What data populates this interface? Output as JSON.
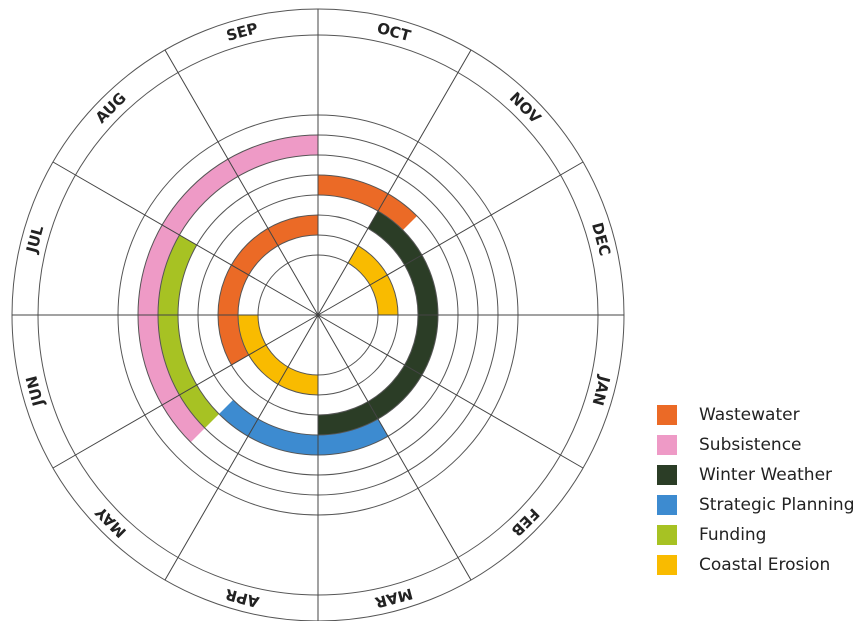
{
  "chart_data": {
    "type": "radial-calendar",
    "months": [
      "OCT",
      "NOV",
      "DEC",
      "JAN",
      "FEB",
      "MAR",
      "APR",
      "MAY",
      "JUN",
      "JUL",
      "AUG",
      "SEP"
    ],
    "series": [
      {
        "name": "Wastewater",
        "color": "#EB6A26",
        "ring": 6,
        "start": "OCT",
        "end": "mid-NOV"
      },
      {
        "name": "Wastewater",
        "color": "#EB6A26",
        "ring": 4,
        "start": "JUN",
        "end": "SEP"
      },
      {
        "name": "Subsistence",
        "color": "#EE9AC6",
        "ring": 8,
        "start": "mid-MAY",
        "end": "SEP"
      },
      {
        "name": "Winter Weather",
        "color": "#2B3D26",
        "ring": 5,
        "start": "NOV",
        "end": "MAR"
      },
      {
        "name": "Strategic Planning",
        "color": "#3D8BD0",
        "ring": 6,
        "start": "MAR",
        "end": "mid-MAY"
      },
      {
        "name": "Funding",
        "color": "#A7C223",
        "ring": 7,
        "start": "mid-MAY",
        "end": "JUL"
      },
      {
        "name": "Coastal Erosion",
        "color": "#F9BB00",
        "ring": 3,
        "start": "NOV",
        "end": "DEC"
      },
      {
        "name": "Coastal Erosion",
        "color": "#F9BB00",
        "ring": 3,
        "start": "APR",
        "end": "JUN"
      }
    ]
  },
  "legend": [
    {
      "label": "Wastewater",
      "color": "#EB6A26"
    },
    {
      "label": "Subsistence",
      "color": "#EE9AC6"
    },
    {
      "label": "Winter Weather",
      "color": "#2B3D26"
    },
    {
      "label": "Strategic Planning",
      "color": "#3D8BD0"
    },
    {
      "label": "Funding",
      "color": "#A7C223"
    },
    {
      "label": "Coastal Erosion",
      "color": "#F9BB00"
    }
  ]
}
